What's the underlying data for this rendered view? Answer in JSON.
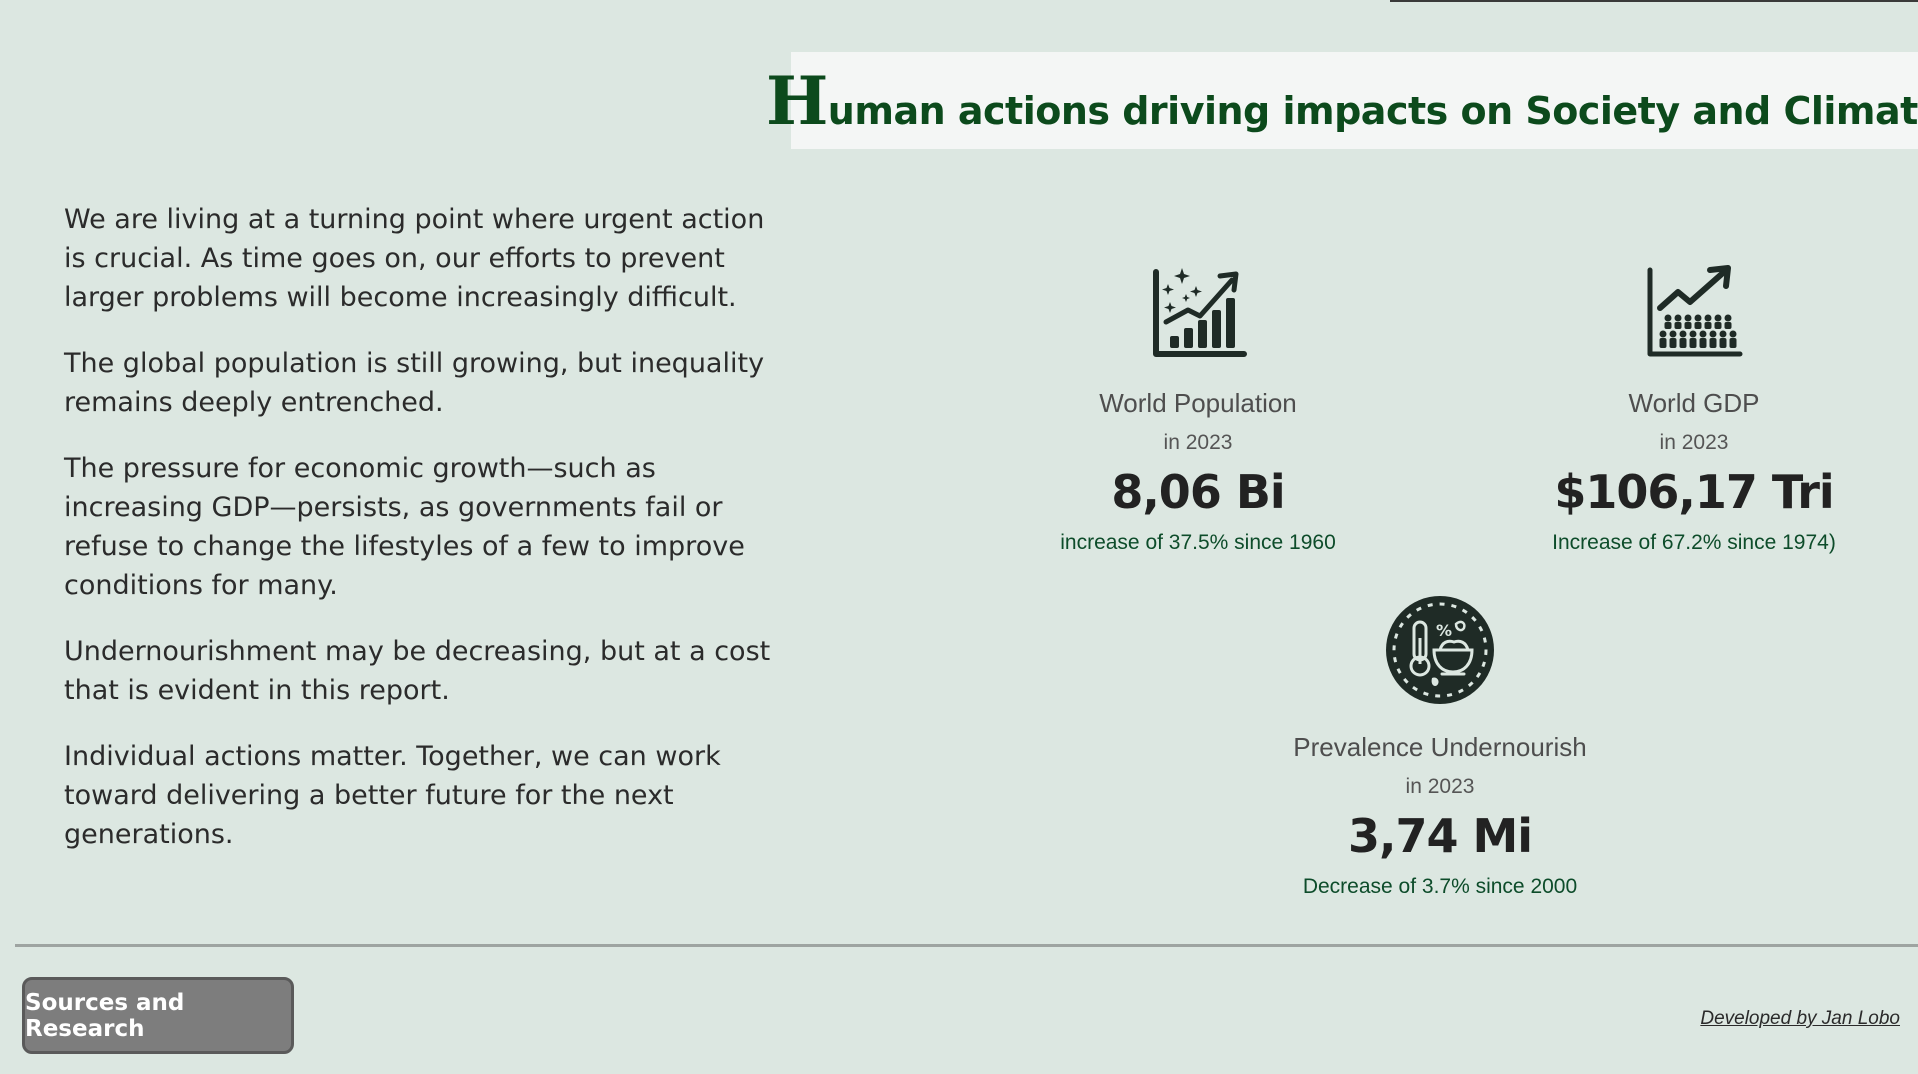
{
  "header": {
    "title_initial": "H",
    "title_rest": "uman actions driving impacts on Society and Climate"
  },
  "intro": {
    "paragraphs": [
      "We are living at a turning point where urgent action is crucial. As time goes on, our efforts to prevent larger problems will become increasingly difficult.",
      "The global population is still growing, but inequality remains deeply entrenched.",
      "The pressure for economic growth—such as increasing GDP—persists, as governments fail or refuse to change the lifestyles of a few to improve conditions for many.",
      "Undernourishment may be decreasing, but at a cost that is evident in this report.",
      "Individual actions matter. Together, we can work toward delivering a better future for the next generations."
    ]
  },
  "kpis": [
    {
      "icon": "growth-chart-icon",
      "title": "World Population",
      "period": "in 2023",
      "value": "8,06 Bi",
      "change": "increase of 37.5% since 1960"
    },
    {
      "icon": "people-growth-icon",
      "title": "World GDP",
      "period": "in 2023",
      "value": "$106,17 Tri",
      "change": "Increase of 67.2% since 1974)"
    },
    {
      "icon": "food-temperature-icon",
      "title": "Prevalence Undernourish",
      "period": "in 2023",
      "value": "3,74 Mi",
      "change": "Decrease of 3.7% since 2000"
    }
  ],
  "footer": {
    "sources_label": "Sources and Research",
    "developer_label": "Developed by Jan Lobo"
  },
  "colors": {
    "background": "#dce7e1",
    "title": "#0c4a1c",
    "change_text": "#0d4c2a",
    "button": "#7d7d7d"
  }
}
